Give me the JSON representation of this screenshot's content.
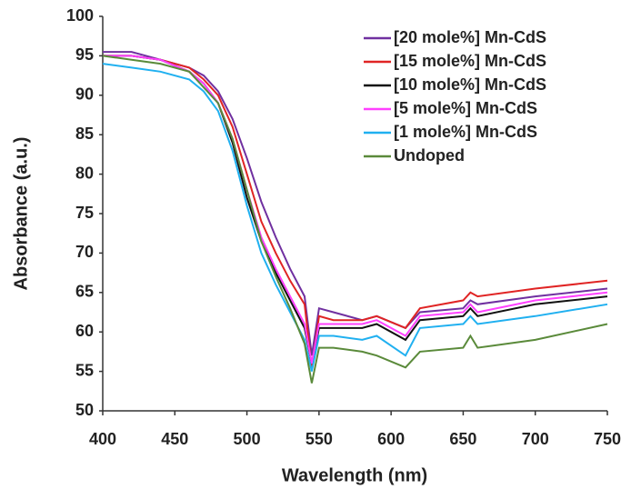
{
  "chart_data": {
    "type": "line",
    "x_label": "Wavelength (nm)",
    "y_label": "Absorbance (a.u.)",
    "x": [
      400,
      420,
      440,
      460,
      470,
      480,
      490,
      500,
      510,
      520,
      530,
      540,
      545,
      550,
      560,
      580,
      590,
      610,
      620,
      650,
      655,
      660,
      700,
      750
    ],
    "series": [
      {
        "name": "[20 mole%] Mn-CdS",
        "color": "#7030a0",
        "values": [
          95.5,
          95.5,
          94.5,
          93.5,
          92.5,
          90.5,
          87,
          82,
          76.5,
          72,
          68,
          64.5,
          57,
          63,
          62.5,
          61.5,
          62,
          60.5,
          62.5,
          63,
          64,
          63.5,
          64.5,
          65.5
        ]
      },
      {
        "name": "[15 mole%] Mn-CdS",
        "color": "#e02424",
        "values": [
          95,
          95,
          94.5,
          93.5,
          92,
          90,
          86,
          80,
          74,
          70,
          66.5,
          63.5,
          55.5,
          62,
          61.5,
          61.5,
          62,
          60.5,
          63,
          64,
          65,
          64.5,
          65.5,
          66.5
        ]
      },
      {
        "name": "[10 mole%] Mn-CdS",
        "color": "#111111",
        "values": [
          95,
          95,
          94.5,
          93,
          91.5,
          89,
          84,
          77,
          71.5,
          67.5,
          64,
          60.5,
          56,
          60.5,
          60.5,
          60.5,
          61,
          59,
          61.5,
          62,
          63,
          62,
          63.5,
          64.5
        ]
      },
      {
        "name": "[5 mole%] Mn-CdS",
        "color": "#ff40ff",
        "values": [
          95,
          95,
          94.5,
          93,
          91.5,
          89,
          84.5,
          78,
          72,
          68,
          64.5,
          61,
          56,
          61,
          61,
          61,
          61.5,
          59.5,
          62,
          62.5,
          63.5,
          62.5,
          64,
          65
        ]
      },
      {
        "name": "[1 mole%] Mn-CdS",
        "color": "#20b0f0",
        "values": [
          94,
          93.5,
          93,
          92,
          90.5,
          88,
          83,
          76,
          70,
          66,
          62.5,
          59,
          55,
          59.5,
          59.5,
          59,
          59.5,
          57,
          60.5,
          61,
          62,
          61,
          62,
          63.5
        ]
      },
      {
        "name": "Undoped",
        "color": "#5a8a3a",
        "values": [
          95,
          94.5,
          94,
          93,
          91,
          89,
          84.5,
          78,
          71.5,
          67,
          63,
          58.5,
          53.5,
          58,
          58,
          57.5,
          57,
          55.5,
          57.5,
          58,
          59.5,
          58,
          59,
          61
        ]
      }
    ],
    "xlim": [
      400,
      750
    ],
    "xticks": [
      400,
      450,
      500,
      550,
      600,
      650,
      700,
      750
    ],
    "ylim": [
      50,
      100
    ],
    "yticks": [
      50,
      55,
      60,
      65,
      70,
      75,
      80,
      85,
      90,
      95,
      100
    ]
  }
}
